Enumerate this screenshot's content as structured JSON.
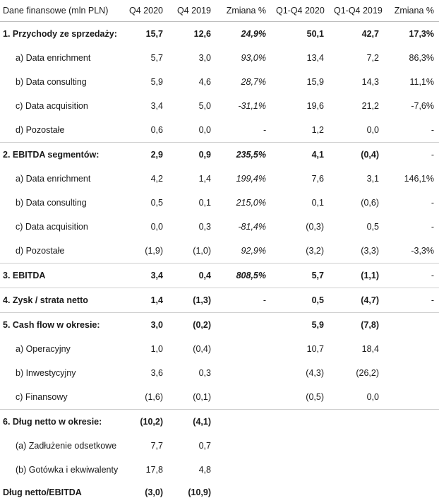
{
  "header": [
    "Dane finansowe (mln PLN)",
    "Q4 2020",
    "Q4 2019",
    "Zmiana %",
    "Q1-Q4 2020",
    "Q1-Q4 2019",
    "Zmiana %"
  ],
  "rows": [
    {
      "label": "1. Przychody ze sprzedaży:",
      "v": [
        "15,7",
        "12,6",
        "24,9%",
        "50,1",
        "42,7",
        "17,3%"
      ]
    },
    {
      "label": "a) Data enrichment",
      "v": [
        "5,7",
        "3,0",
        "93,0%",
        "13,4",
        "7,2",
        "86,3%"
      ]
    },
    {
      "label": "b) Data consulting",
      "v": [
        "5,9",
        "4,6",
        "28,7%",
        "15,9",
        "14,3",
        "11,1%"
      ]
    },
    {
      "label": "c) Data acquisition",
      "v": [
        "3,4",
        "5,0",
        "-31,1%",
        "19,6",
        "21,2",
        "-7,6%"
      ]
    },
    {
      "label": "d) Pozostałe",
      "v": [
        "0,6",
        "0,0",
        "-",
        "1,2",
        "0,0",
        "-"
      ]
    },
    {
      "label": "2. EBITDA segmentów:",
      "v": [
        "2,9",
        "0,9",
        "235,5%",
        "4,1",
        "(0,4)",
        "-"
      ]
    },
    {
      "label": "a) Data enrichment",
      "v": [
        "4,2",
        "1,4",
        "199,4%",
        "7,6",
        "3,1",
        "146,1%"
      ]
    },
    {
      "label": "b) Data consulting",
      "v": [
        "0,5",
        "0,1",
        "215,0%",
        "0,1",
        "(0,6)",
        "-"
      ]
    },
    {
      "label": "c) Data acquisition",
      "v": [
        "0,0",
        "0,3",
        "-81,4%",
        "(0,3)",
        "0,5",
        "-"
      ]
    },
    {
      "label": "d) Pozostałe",
      "v": [
        "(1,9)",
        "(1,0)",
        "92,9%",
        "(3,2)",
        "(3,3)",
        "-3,3%"
      ]
    },
    {
      "label": "3. EBITDA",
      "v": [
        "3,4",
        "0,4",
        "808,5%",
        "5,7",
        "(1,1)",
        "-"
      ]
    },
    {
      "label": "4. Zysk / strata netto",
      "v": [
        "1,4",
        "(1,3)",
        "-",
        "0,5",
        "(4,7)",
        "-"
      ]
    },
    {
      "label": "5. Cash flow w okresie:",
      "v": [
        "3,0",
        "(0,2)",
        "",
        "5,9",
        "(7,8)",
        ""
      ]
    },
    {
      "label": "a) Operacyjny",
      "v": [
        "1,0",
        "(0,4)",
        "",
        "10,7",
        "18,4",
        ""
      ]
    },
    {
      "label": "b) Inwestycyjny",
      "v": [
        "3,6",
        "0,3",
        "",
        "(4,3)",
        "(26,2)",
        ""
      ]
    },
    {
      "label": "c) Finansowy",
      "v": [
        "(1,6)",
        "(0,1)",
        "",
        "(0,5)",
        "0,0",
        ""
      ]
    },
    {
      "label": "6. Dług netto w okresie:",
      "v": [
        "(10,2)",
        "(4,1)",
        "",
        "",
        "",
        ""
      ]
    },
    {
      "label": "(a) Zadłużenie odsetkowe",
      "v": [
        "7,7",
        "0,7",
        "",
        "",
        "",
        ""
      ]
    },
    {
      "label": "(b) Gotówka i ekwiwalenty",
      "v": [
        "17,8",
        "4,8",
        "",
        "",
        "",
        ""
      ]
    },
    {
      "label": "Dług netto/EBITDA",
      "v": [
        "(3,0)",
        "(10,9)",
        "",
        "",
        "",
        ""
      ]
    }
  ]
}
